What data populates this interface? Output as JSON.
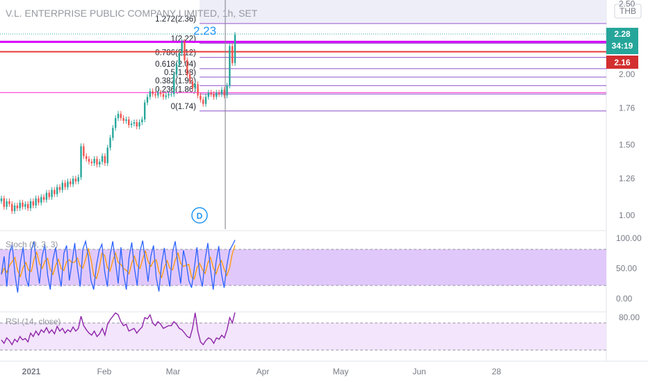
{
  "symbol": {
    "title": "V.L. ENTERPRISE PUBLIC COMPANY LIMITED, 1h, SET",
    "currency": "THB"
  },
  "colors": {
    "candle_up": "#26a69a",
    "candle_down": "#ef5350",
    "fib_line": "#8e4fc9",
    "magenta_line": "#d500f9",
    "red_line": "#e53935",
    "pink_line": "#ff4fd8",
    "stoch_k": "#2962ff",
    "stoch_d": "#ff9800",
    "stoch_band": "#e1c8fb",
    "rsi_line": "#8e24aa",
    "rsi_band": "#f3e5fb",
    "price_badge": "#26a69a",
    "level_badge": "#d32f2f"
  },
  "price_badges": {
    "last_price": "2.28",
    "countdown": "34:19",
    "level": "2.16"
  },
  "annotation": {
    "price_label": "2.23",
    "dividend_marker": "D"
  },
  "indicators": {
    "stoch_label": "Stoch (9, 3, 3)",
    "rsi_label": "RSI (14, close)"
  },
  "chart_data": [
    {
      "type": "candlestick",
      "title": "V.L. ENTERPRISE PUBLIC COMPANY LIMITED, 1h, SET",
      "y_axis_ticks": [
        "2.50",
        "2.00",
        "1.76",
        "1.50",
        "1.26",
        "1.00"
      ],
      "y_range": [
        0.9,
        2.55
      ],
      "x_axis_ticks": [
        "2021",
        "Feb",
        "Mar",
        "Apr",
        "May",
        "Jun",
        "28"
      ],
      "closes": [
        1.12,
        1.06,
        1.1,
        1.08,
        1.03,
        1.07,
        1.05,
        1.09,
        1.06,
        1.08,
        1.05,
        1.1,
        1.07,
        1.12,
        1.09,
        1.13,
        1.11,
        1.16,
        1.13,
        1.18,
        1.15,
        1.2,
        1.18,
        1.23,
        1.2,
        1.24,
        1.22,
        1.26,
        1.24,
        1.27,
        1.49,
        1.42,
        1.4,
        1.38,
        1.37,
        1.4,
        1.36,
        1.38,
        1.42,
        1.37,
        1.48,
        1.55,
        1.62,
        1.69,
        1.72,
        1.69,
        1.67,
        1.68,
        1.64,
        1.65,
        1.66,
        1.63,
        1.66,
        1.68,
        1.8,
        1.84,
        1.88,
        1.86,
        1.85,
        1.87,
        1.86,
        1.84,
        1.85,
        1.86,
        1.86,
        2.0,
        2.07,
        2.15,
        2.23,
        2.1,
        2.0,
        1.95,
        1.9,
        1.93,
        1.85,
        1.82,
        1.79,
        1.84,
        1.87,
        1.86,
        1.84,
        1.87,
        1.86,
        1.89,
        1.85,
        1.92,
        2.2,
        2.08,
        2.28
      ],
      "fibonacci_levels": [
        {
          "label": "1.272(2.36)",
          "value": 2.36
        },
        {
          "label": "1(2.22)",
          "value": 2.22
        },
        {
          "label": "0.786(2.12)",
          "value": 2.12
        },
        {
          "label": "0.618(2.04)",
          "value": 2.04
        },
        {
          "label": "0.5(1.98)",
          "value": 1.98
        },
        {
          "label": "0.382(1.92)",
          "value": 1.92
        },
        {
          "label": "0.236(1.86)",
          "value": 1.86
        },
        {
          "label": "0(1.74)",
          "value": 1.74
        }
      ],
      "horizontal_lines": [
        2.23,
        2.16,
        1.87
      ]
    },
    {
      "type": "line",
      "title": "Stoch (9, 3, 3)",
      "y_axis_ticks": [
        "100.00",
        "50.00",
        "0.00"
      ],
      "band": [
        20,
        80
      ],
      "series": [
        {
          "values": [
            40,
            70,
            20,
            75,
            90,
            40,
            10,
            60,
            85,
            35,
            20,
            80,
            95,
            55,
            25,
            70,
            90,
            40,
            15,
            65,
            85,
            45,
            20,
            75,
            88,
            30,
            60,
            92,
            50,
            20,
            82,
            95,
            70,
            30,
            15,
            55,
            80,
            90,
            45,
            20,
            72,
            95,
            60,
            25,
            85,
            40,
            15,
            68,
            93,
            50,
            22,
            78,
            96,
            62,
            28,
            70,
            88,
            35,
            12,
            58,
            84,
            47,
            20,
            76,
            95,
            55,
            25,
            80,
            60,
            30,
            18,
            50,
            85,
            40,
            20,
            65,
            92,
            48,
            15,
            60,
            87,
            42,
            18,
            55,
            80,
            88,
            97
          ]
        }
      ]
    },
    {
      "type": "line",
      "title": "RSI (14, close)",
      "y_axis_ticks": [
        "80.00"
      ],
      "band": [
        30,
        70
      ],
      "series": [
        {
          "values": [
            45,
            40,
            48,
            44,
            38,
            46,
            42,
            50,
            45,
            47,
            42,
            55,
            50,
            58,
            52,
            60,
            56,
            63,
            55,
            60,
            54,
            65,
            58,
            62,
            55,
            60,
            57,
            64,
            58,
            62,
            80,
            66,
            60,
            55,
            52,
            58,
            50,
            54,
            62,
            52,
            68,
            75,
            80,
            85,
            82,
            72,
            66,
            68,
            58,
            60,
            62,
            55,
            60,
            64,
            78,
            76,
            82,
            70,
            66,
            72,
            68,
            62,
            64,
            66,
            66,
            72,
            68,
            62,
            60,
            55,
            50,
            48,
            62,
            85,
            58,
            42,
            38,
            44,
            48,
            46,
            40,
            48,
            46,
            52,
            48,
            60,
            78,
            70,
            86
          ]
        }
      ]
    }
  ]
}
